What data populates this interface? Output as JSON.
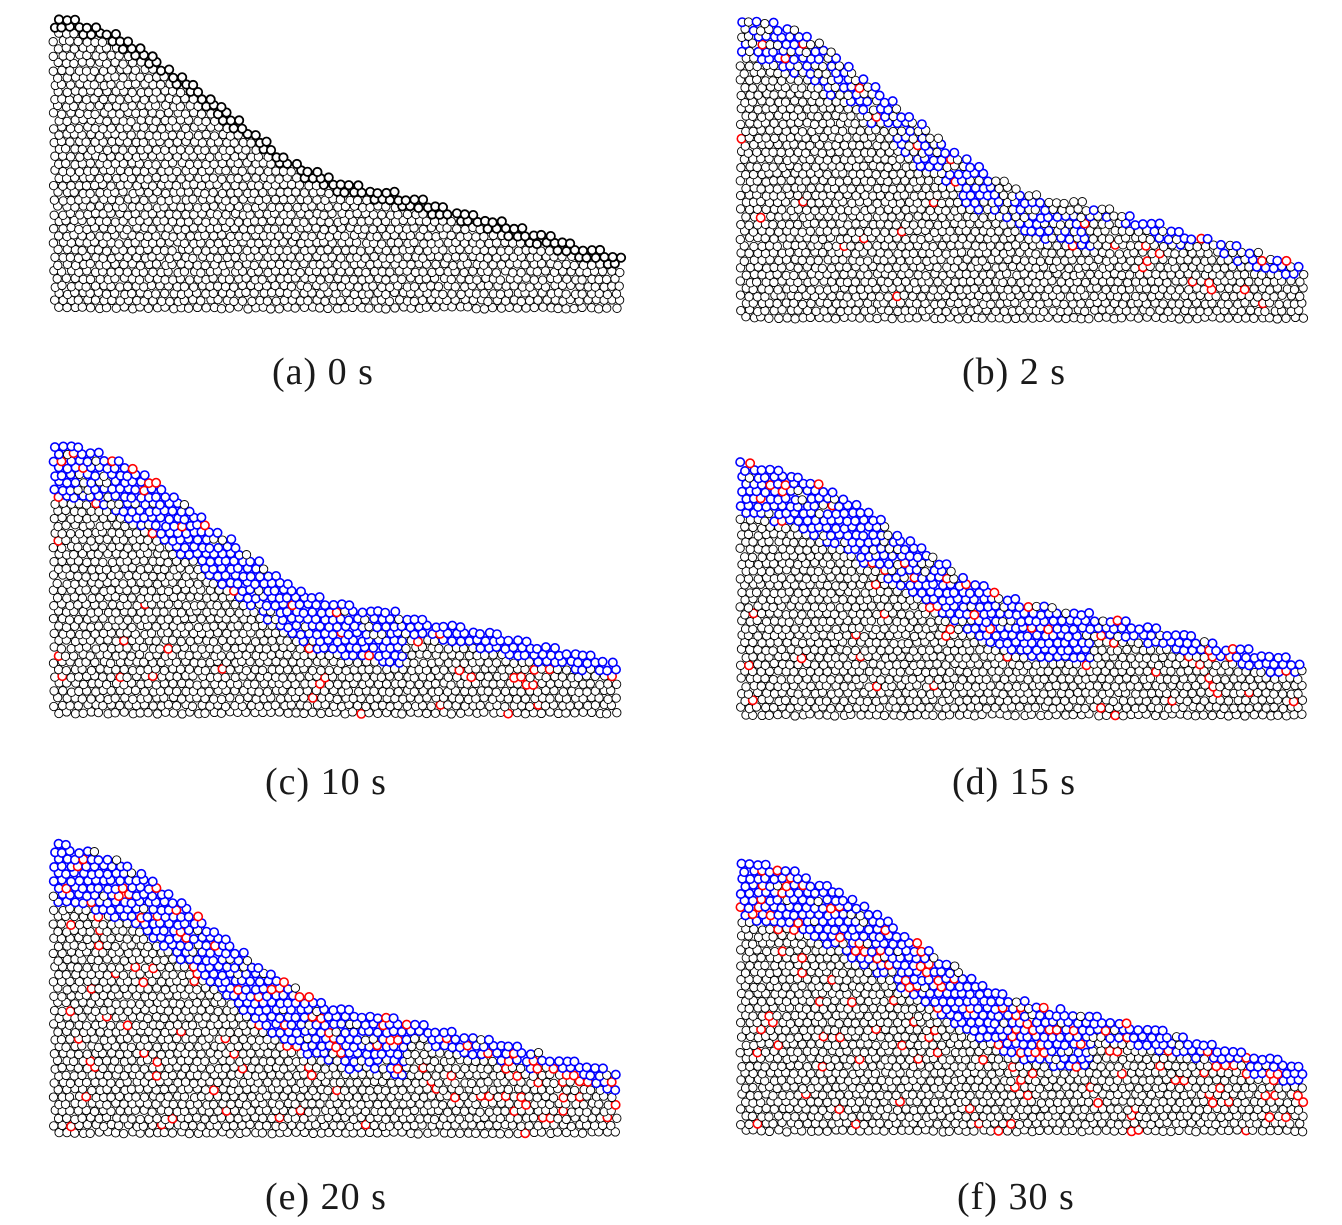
{
  "figure": {
    "panels": [
      {
        "id": "a",
        "caption": "(a) 0 s"
      },
      {
        "id": "b",
        "caption": "(b) 2 s"
      },
      {
        "id": "c",
        "caption": "(c) 10 s"
      },
      {
        "id": "d",
        "caption": "(d) 15 s"
      },
      {
        "id": "e",
        "caption": "(e) 20 s"
      },
      {
        "id": "f",
        "caption": "(f) 30 s"
      }
    ],
    "colors": {
      "particle_outline": "#000000",
      "particle_fill": "#ffffff",
      "moving_layer": "#0000ff",
      "broken_bond": "#ff0000"
    }
  }
}
